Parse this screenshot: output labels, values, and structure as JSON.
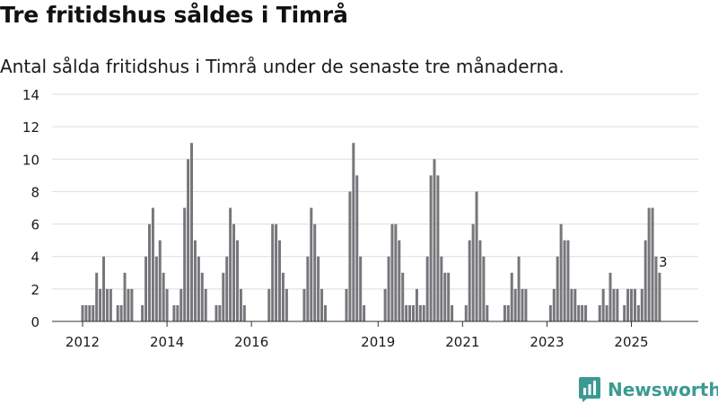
{
  "title": "Tre fritidshus såldes i Timrå",
  "subtitle": "Antal sålda fritidshus i Timrå under de senaste tre månaderna.",
  "brand": {
    "name": "Newsworthy",
    "icon": "newsworthy-logo-icon"
  },
  "colors": {
    "bar": "#77767b",
    "highlight": "#2a9d8f",
    "grid": "#dddddd",
    "axis": "#333333",
    "brand": "#3b9a93"
  },
  "chart_data": {
    "type": "bar",
    "title": "Tre fritidshus såldes i Timrå",
    "subtitle": "Antal sålda fritidshus i Timrå under de senaste tre månaderna.",
    "xlabel": "",
    "ylabel": "",
    "ylim": [
      0,
      14
    ],
    "yticks": [
      0,
      2,
      4,
      6,
      8,
      10,
      12,
      14
    ],
    "grid": true,
    "x_ticks": [
      {
        "label": "2012",
        "year": 2012
      },
      {
        "label": "2014",
        "year": 2014
      },
      {
        "label": "2016",
        "year": 2016
      },
      {
        "label": "2019",
        "year": 2019
      },
      {
        "label": "2021",
        "year": 2021
      },
      {
        "label": "2023",
        "year": 2023
      },
      {
        "label": "2025",
        "year": 2025
      }
    ],
    "start": {
      "year": 2012,
      "month": 1
    },
    "period": "rolling three months, monthly",
    "values": [
      1,
      1,
      1,
      1,
      3,
      2,
      4,
      2,
      2,
      0,
      1,
      1,
      3,
      2,
      2,
      0,
      0,
      1,
      4,
      6,
      7,
      4,
      5,
      3,
      2,
      0,
      1,
      1,
      2,
      7,
      10,
      11,
      5,
      4,
      3,
      2,
      0,
      0,
      1,
      1,
      3,
      4,
      7,
      6,
      5,
      2,
      1,
      0,
      0,
      0,
      0,
      0,
      0,
      2,
      6,
      6,
      5,
      3,
      2,
      0,
      0,
      0,
      0,
      2,
      4,
      7,
      6,
      4,
      2,
      1,
      0,
      0,
      0,
      0,
      0,
      2,
      8,
      11,
      9,
      4,
      1,
      0,
      0,
      0,
      0,
      0,
      2,
      4,
      6,
      6,
      5,
      3,
      1,
      1,
      1,
      2,
      1,
      1,
      4,
      9,
      10,
      9,
      4,
      3,
      3,
      1,
      0,
      0,
      0,
      1,
      5,
      6,
      8,
      5,
      4,
      1,
      0,
      0,
      0,
      0,
      1,
      1,
      3,
      2,
      4,
      2,
      2,
      0,
      0,
      0,
      0,
      0,
      0,
      1,
      2,
      4,
      6,
      5,
      5,
      2,
      2,
      1,
      1,
      1,
      0,
      0,
      0,
      1,
      2,
      1,
      3,
      2,
      2,
      0,
      1,
      2,
      2,
      2,
      1,
      2,
      5,
      7,
      7,
      4,
      3
    ],
    "highlight": {
      "index": 165,
      "value": 3,
      "label": "3"
    }
  }
}
